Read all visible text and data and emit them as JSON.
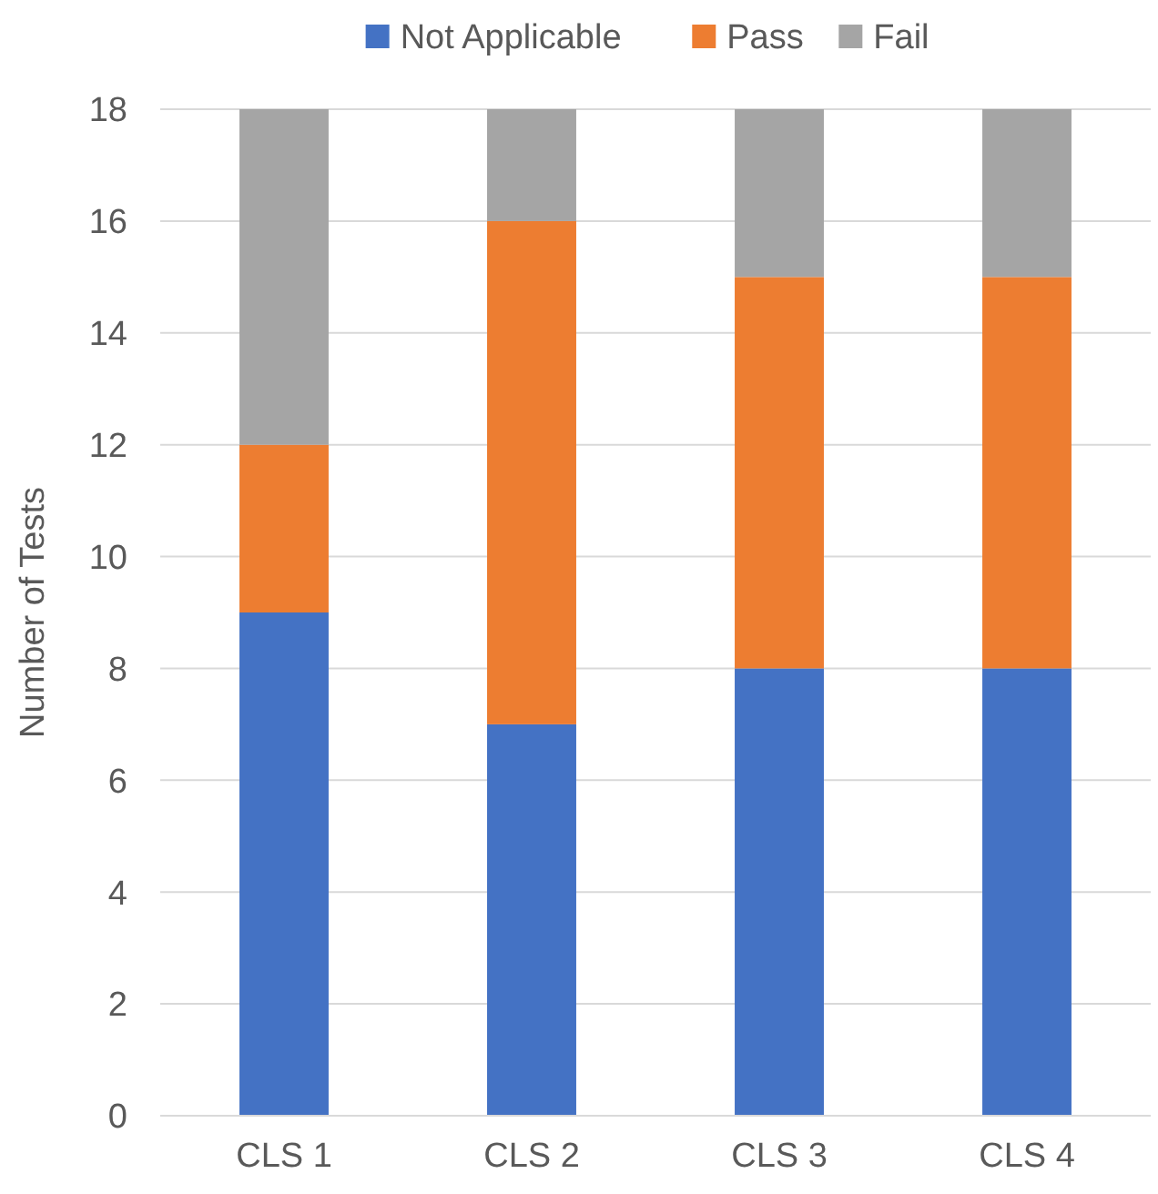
{
  "chart_data": {
    "type": "bar",
    "stacked": true,
    "categories": [
      "CLS 1",
      "CLS 2",
      "CLS 3",
      "CLS 4"
    ],
    "series": [
      {
        "name": "Not Applicable",
        "color": "#4472c4",
        "values": [
          9,
          7,
          8,
          8
        ]
      },
      {
        "name": "Pass",
        "color": "#ed7d31",
        "values": [
          3,
          9,
          7,
          7
        ]
      },
      {
        "name": "Fail",
        "color": "#a5a5a5",
        "values": [
          6,
          2,
          3,
          3
        ]
      }
    ],
    "ylabel": "Number of Tests",
    "ylim": [
      0,
      18
    ],
    "yticks": [
      0,
      2,
      4,
      6,
      8,
      10,
      12,
      14,
      16,
      18
    ],
    "grid": "y",
    "legend": "top"
  }
}
